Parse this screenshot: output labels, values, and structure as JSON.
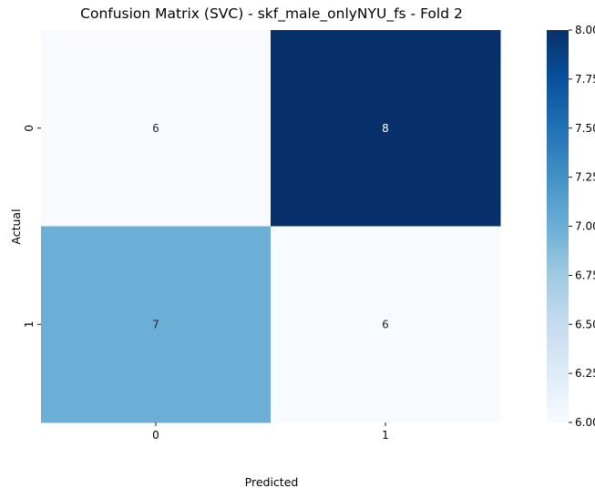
{
  "chart_data": {
    "type": "heatmap",
    "title": "Confusion Matrix (SVC) - skf_male_onlyNYU_fs - Fold 2",
    "xlabel": "Predicted",
    "ylabel": "Actual",
    "x_categories": [
      "0",
      "1"
    ],
    "y_categories": [
      "0",
      "1"
    ],
    "values": [
      [
        6,
        8
      ],
      [
        7,
        6
      ]
    ],
    "colormap": "Blues",
    "vmin": 6,
    "vmax": 8,
    "colorbar": {
      "ticks": [
        6.0,
        6.25,
        6.5,
        6.75,
        7.0,
        7.25,
        7.5,
        7.75,
        8.0
      ],
      "tick_labels": [
        "6.00",
        "6.25",
        "6.50",
        "6.75",
        "7.00",
        "7.25",
        "7.50",
        "7.75",
        "8.00"
      ]
    },
    "annotations": true,
    "grid": false
  }
}
